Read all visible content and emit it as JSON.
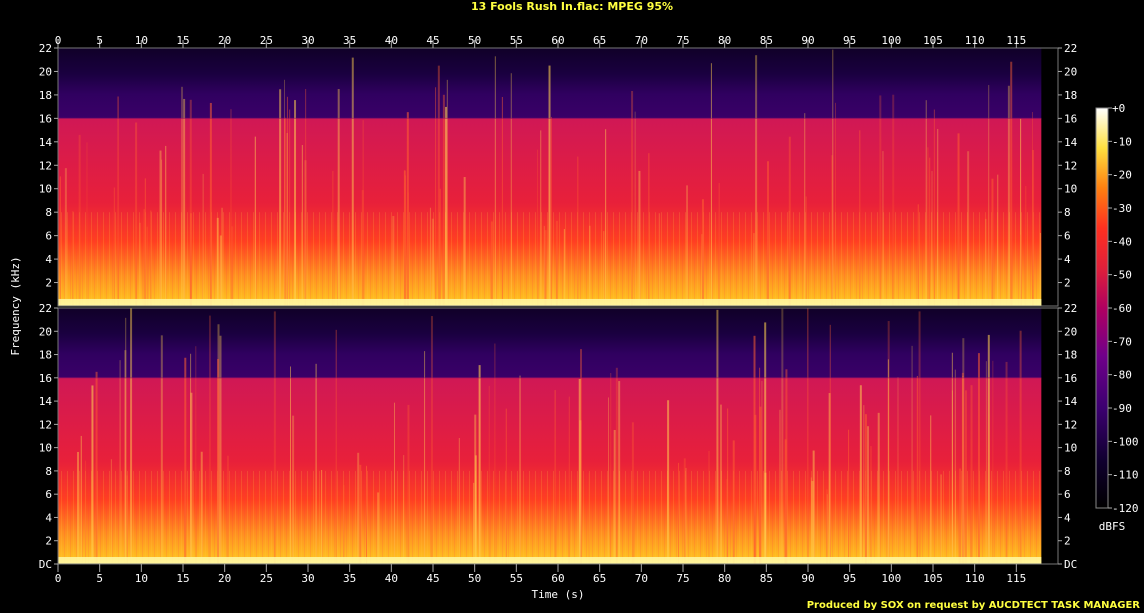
{
  "title": "13 Fools Rush In.flac: MPEG 95%",
  "footer": "Produced by SOX on request by AUCDTECT TASK MANAGER",
  "chart_data": {
    "type": "heatmap",
    "title": "13 Fools Rush In.flac: MPEG 95%",
    "xlabel": "Time (s)",
    "ylabel": "Frequency (kHz)",
    "xlim": [
      0,
      120
    ],
    "ylim": [
      0,
      22
    ],
    "x_ticks": [
      "0",
      "5",
      "10",
      "15",
      "20",
      "25",
      "30",
      "35",
      "40",
      "45",
      "50",
      "55",
      "60",
      "65",
      "70",
      "75",
      "80",
      "85",
      "90",
      "95",
      "100",
      "105",
      "110",
      "115"
    ],
    "y_ticks": [
      "DC",
      "2",
      "4",
      "6",
      "8",
      "10",
      "12",
      "14",
      "16",
      "18",
      "20",
      "22"
    ],
    "channels": 2,
    "colorbar": {
      "label": "dBFS",
      "ticks": [
        "+0",
        "-10",
        "-20",
        "-30",
        "-40",
        "-50",
        "-60",
        "-70",
        "-80",
        "-90",
        "-100",
        "-110",
        "-120"
      ],
      "range": [
        -120,
        0
      ]
    },
    "lowpass_cutoff_khz": 16,
    "duration_s": 118,
    "colors": {
      "low": "#000000",
      "mid_low": "#3c0070",
      "mid": "#e0203a",
      "high": "#ffe040",
      "peak": "#ffffff"
    }
  }
}
